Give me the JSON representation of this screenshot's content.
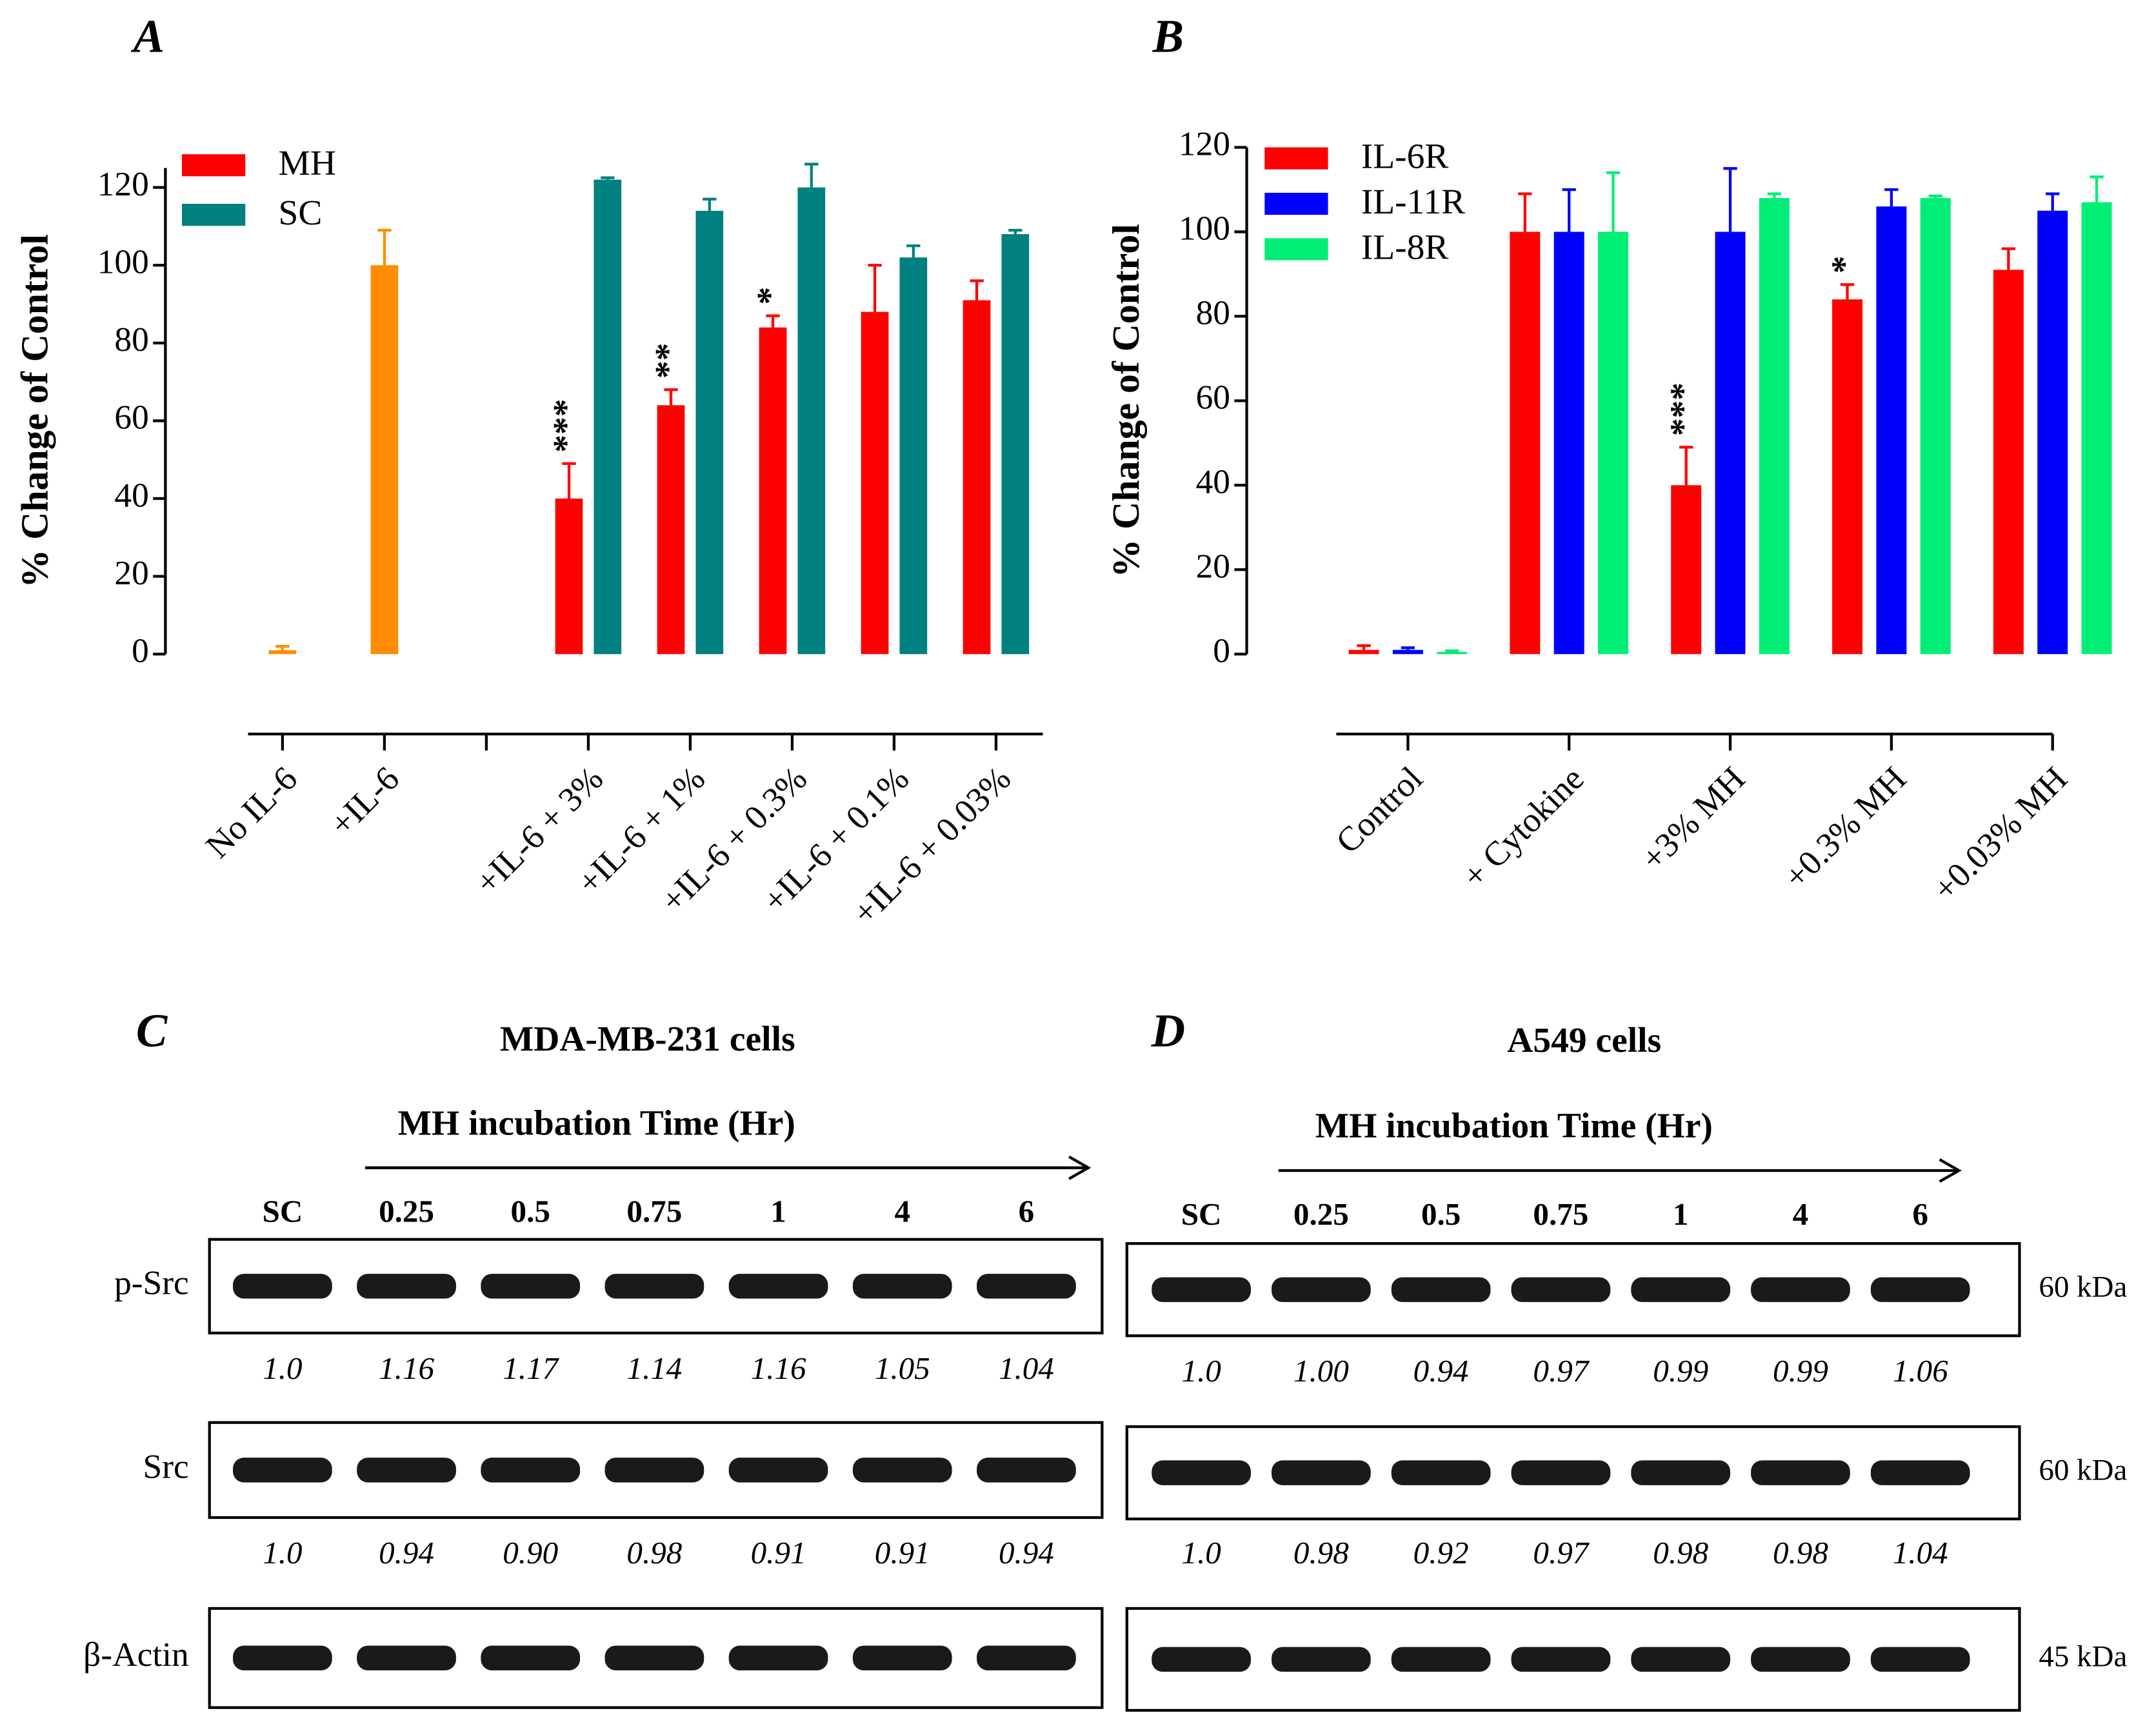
{
  "chart_data": [
    {
      "type": "bar",
      "title": "A",
      "ylabel": "% Change of Control",
      "categories": [
        "No IL-6",
        "+IL-6",
        null,
        "+IL-6 + 3%",
        "+IL-6 + 1%",
        "+IL-6 + 0.3%",
        "+IL-6 + 0.1%",
        "+IL-6 + 0.03%"
      ],
      "series": [
        {
          "color": "#ff8c00",
          "values": [
            1,
            100,
            null,
            null,
            null,
            null,
            null,
            null
          ],
          "errors": [
            1,
            9,
            null,
            null,
            null,
            null,
            null,
            null
          ]
        },
        {
          "name": "MH",
          "color": "#ff0000",
          "values": [
            null,
            null,
            null,
            40,
            64,
            84,
            88,
            91
          ],
          "errors": [
            null,
            null,
            null,
            9,
            4,
            3,
            12,
            5
          ],
          "significance": [
            null,
            null,
            null,
            "***",
            "**",
            "*",
            null,
            null
          ]
        },
        {
          "name": "SC",
          "color": "#008080",
          "values": [
            null,
            null,
            null,
            122,
            114,
            120,
            102,
            108
          ],
          "errors": [
            null,
            null,
            null,
            0.5,
            3,
            6,
            3,
            1
          ]
        }
      ],
      "ylim": [
        0,
        125
      ],
      "yticks": [
        0,
        20,
        40,
        60,
        80,
        100,
        120
      ],
      "legend": "upper left"
    },
    {
      "type": "bar",
      "title": "B",
      "ylabel": "% Change of Control",
      "categories": [
        "Control",
        "+ Cytokine",
        "+3% MH",
        "+0.3% MH",
        "+0.03% MH"
      ],
      "series": [
        {
          "name": "IL-6R",
          "color": "#ff0000",
          "values": [
            1,
            100,
            40,
            84,
            91
          ],
          "errors": [
            1,
            9,
            9,
            3.5,
            5
          ],
          "significance": [
            null,
            null,
            "***",
            "*",
            null
          ]
        },
        {
          "name": "IL-11R",
          "color": "#0000ff",
          "values": [
            1,
            100,
            100,
            106,
            105
          ],
          "errors": [
            0.5,
            10,
            15,
            4,
            4
          ]
        },
        {
          "name": "IL-8R",
          "color": "#00ee76",
          "values": [
            0.5,
            100,
            108,
            108,
            107
          ],
          "errors": [
            0.3,
            14,
            1,
            0.5,
            6
          ]
        }
      ],
      "ylim": [
        0,
        120
      ],
      "yticks": [
        0,
        20,
        40,
        60,
        80,
        100,
        120
      ],
      "legend": "upper left"
    }
  ],
  "blots": [
    {
      "panel": "C",
      "title": "MDA-MB-231 cells",
      "xlabel": "MH incubation Time (Hr)",
      "lanes": [
        "SC",
        "0.25",
        "0.5",
        "0.75",
        "1",
        "4",
        "6"
      ],
      "rows": [
        {
          "label": "p-Src",
          "values": [
            "1.0",
            "1.16",
            "1.17",
            "1.14",
            "1.16",
            "1.05",
            "1.04"
          ]
        },
        {
          "label": "Src",
          "values": [
            "1.0",
            "0.94",
            "0.90",
            "0.98",
            "0.91",
            "0.91",
            "0.94"
          ]
        },
        {
          "label": "β-Actin"
        }
      ]
    },
    {
      "panel": "D",
      "title": "A549 cells",
      "xlabel": "MH incubation Time (Hr)",
      "lanes": [
        "SC",
        "0.25",
        "0.5",
        "0.75",
        "1",
        "4",
        "6"
      ],
      "rows": [
        {
          "size": "60 kDa",
          "values": [
            "1.0",
            "1.00",
            "0.94",
            "0.97",
            "0.99",
            "0.99",
            "1.06"
          ]
        },
        {
          "size": "60 kDa",
          "values": [
            "1.0",
            "0.98",
            "0.92",
            "0.97",
            "0.98",
            "0.98",
            "1.04"
          ]
        },
        {
          "size": "45 kDa"
        }
      ]
    }
  ]
}
